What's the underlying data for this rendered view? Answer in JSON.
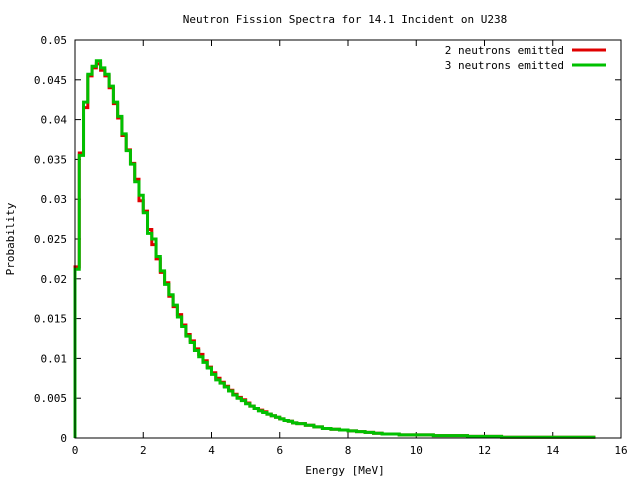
{
  "chart_data": {
    "type": "line",
    "title": "Neutron Fission Spectra for 14.1 Incident on U238",
    "xlabel": "Energy [MeV]",
    "ylabel": "Probability",
    "xlim": [
      0,
      16
    ],
    "ylim": [
      0,
      0.05
    ],
    "xticks": [
      "0",
      "2",
      "4",
      "6",
      "8",
      "10",
      "12",
      "14",
      "16"
    ],
    "yticks": [
      "0",
      "0.005",
      "0.01",
      "0.015",
      "0.02",
      "0.025",
      "0.03",
      "0.035",
      "0.04",
      "0.045",
      "0.05"
    ],
    "grid": false,
    "legend_position": "top-right",
    "step": true,
    "x": [
      0,
      0.125,
      0.25,
      0.375,
      0.5,
      0.625,
      0.75,
      0.875,
      1.0,
      1.125,
      1.25,
      1.375,
      1.5,
      1.625,
      1.75,
      1.875,
      2.0,
      2.125,
      2.25,
      2.375,
      2.5,
      2.625,
      2.75,
      2.875,
      3.0,
      3.125,
      3.25,
      3.375,
      3.5,
      3.625,
      3.75,
      3.875,
      4.0,
      4.125,
      4.25,
      4.375,
      4.5,
      4.625,
      4.75,
      4.875,
      5.0,
      5.125,
      5.25,
      5.375,
      5.5,
      5.625,
      5.75,
      5.875,
      6.0,
      6.125,
      6.25,
      6.375,
      6.5,
      6.75,
      7.0,
      7.25,
      7.5,
      7.75,
      8.0,
      8.25,
      8.5,
      8.75,
      9.0,
      9.5,
      10.0,
      10.5,
      11.0,
      11.5,
      12.0,
      12.5,
      13.0,
      13.5,
      14.0,
      14.5,
      14.875
    ],
    "series": [
      {
        "name": "2 neutrons emitted",
        "color": "#e00000",
        "values": [
          0.0215,
          0.0358,
          0.0415,
          0.0455,
          0.0465,
          0.047,
          0.0462,
          0.0455,
          0.044,
          0.042,
          0.0402,
          0.038,
          0.0362,
          0.0345,
          0.0325,
          0.0298,
          0.0285,
          0.0262,
          0.0243,
          0.0225,
          0.0208,
          0.0195,
          0.0178,
          0.0165,
          0.0155,
          0.0142,
          0.013,
          0.0122,
          0.0112,
          0.0105,
          0.0097,
          0.0089,
          0.0082,
          0.0075,
          0.007,
          0.0065,
          0.006,
          0.0055,
          0.0051,
          0.0048,
          0.0044,
          0.004,
          0.0037,
          0.0035,
          0.0033,
          0.003,
          0.0028,
          0.0026,
          0.0024,
          0.0022,
          0.0021,
          0.0019,
          0.0018,
          0.0016,
          0.0014,
          0.0012,
          0.0011,
          0.001,
          0.0009,
          0.0008,
          0.0007,
          0.0006,
          0.0005,
          0.0004,
          0.0004,
          0.0003,
          0.0003,
          0.0002,
          0.0002,
          0.0001,
          0.0001,
          0.0001,
          0.0001,
          0.0001,
          0.0001
        ]
      },
      {
        "name": "3 neutrons emitted",
        "color": "#00c000",
        "values": [
          0.0212,
          0.0355,
          0.0422,
          0.0457,
          0.0467,
          0.0474,
          0.0465,
          0.0457,
          0.0442,
          0.0422,
          0.0404,
          0.0382,
          0.0361,
          0.0344,
          0.0322,
          0.0305,
          0.0283,
          0.0257,
          0.025,
          0.0228,
          0.021,
          0.0193,
          0.018,
          0.0167,
          0.0152,
          0.014,
          0.0128,
          0.012,
          0.011,
          0.0102,
          0.0095,
          0.0088,
          0.008,
          0.0073,
          0.0069,
          0.0064,
          0.0059,
          0.0054,
          0.005,
          0.0047,
          0.0043,
          0.004,
          0.0037,
          0.0034,
          0.0032,
          0.003,
          0.0028,
          0.0026,
          0.0024,
          0.0022,
          0.0021,
          0.0019,
          0.0018,
          0.0016,
          0.0014,
          0.0012,
          0.0011,
          0.001,
          0.0009,
          0.0008,
          0.0007,
          0.0006,
          0.0005,
          0.0004,
          0.0004,
          0.0003,
          0.0003,
          0.0002,
          0.0002,
          0.0001,
          0.0001,
          0.0001,
          0.0001,
          0.0001,
          0.0001
        ]
      }
    ]
  }
}
